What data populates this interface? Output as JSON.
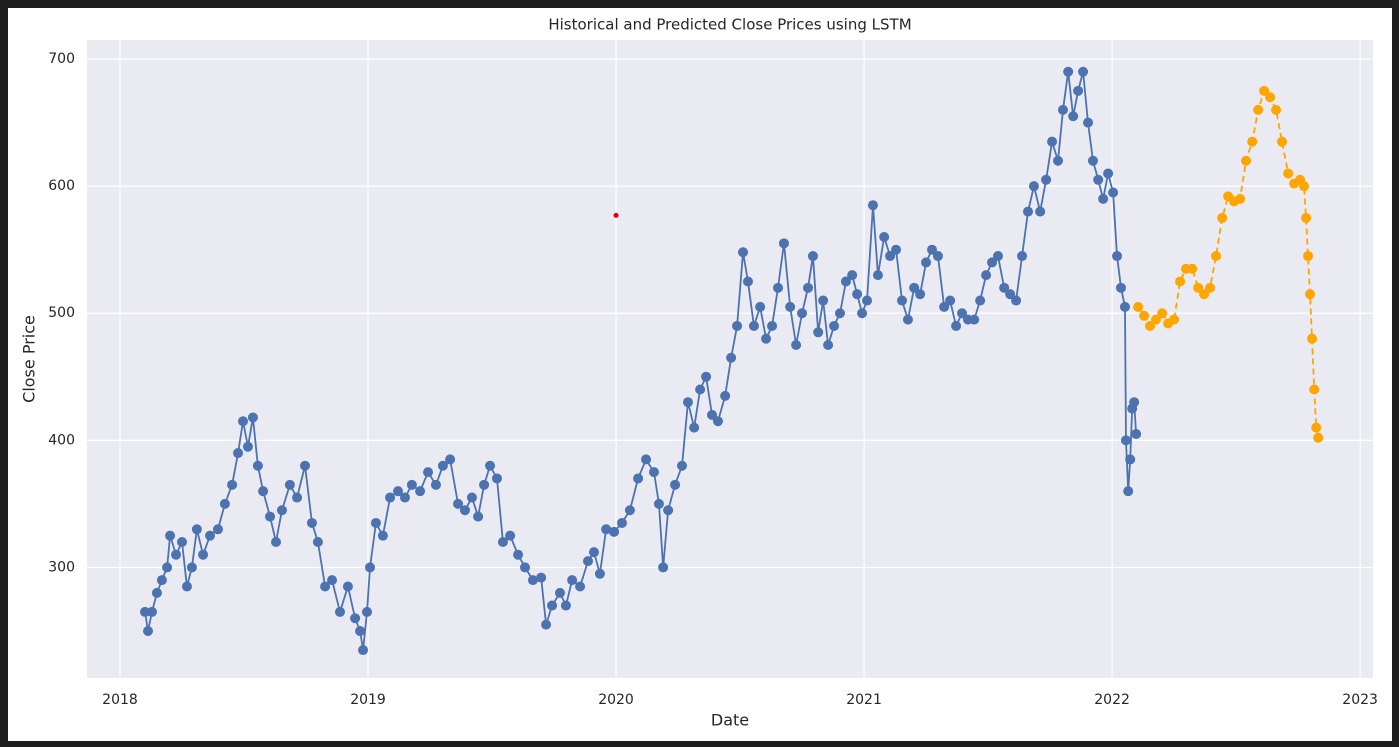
{
  "chart_data": {
    "type": "line",
    "title": "Historical and Predicted Close Prices using LSTM",
    "x_label": "Date",
    "y_label": "Close Price",
    "xlim": [
      2017.867,
      2023.052
    ],
    "ylim": [
      213,
      715
    ],
    "xticks": [
      2018,
      2019,
      2020,
      2021,
      2022,
      2023
    ],
    "yticks": [
      300,
      400,
      500,
      600,
      700
    ],
    "grid": true,
    "background": "#eaeaf2",
    "series": [
      {
        "color": "#4c72b0",
        "linestyle": "solid",
        "marker": "circle",
        "x": [
          2018.101,
          2018.113,
          2018.129,
          2018.149,
          2018.169,
          2018.19,
          2018.202,
          2018.226,
          2018.25,
          2018.27,
          2018.29,
          2018.31,
          2018.335,
          2018.363,
          2018.395,
          2018.423,
          2018.452,
          2018.476,
          2018.496,
          2018.516,
          2018.536,
          2018.556,
          2018.577,
          2018.605,
          2018.629,
          2018.653,
          2018.685,
          2018.714,
          2018.746,
          2018.774,
          2018.798,
          2018.827,
          2018.855,
          2018.887,
          2018.919,
          2018.948,
          2018.968,
          2018.98,
          2018.996,
          2019.008,
          2019.032,
          2019.06,
          2019.089,
          2019.121,
          2019.149,
          2019.177,
          2019.21,
          2019.242,
          2019.274,
          2019.302,
          2019.331,
          2019.363,
          2019.391,
          2019.419,
          2019.444,
          2019.468,
          2019.492,
          2019.52,
          2019.544,
          2019.573,
          2019.605,
          2019.633,
          2019.665,
          2019.698,
          2019.718,
          2019.742,
          2019.774,
          2019.798,
          2019.823,
          2019.855,
          2019.887,
          2019.911,
          2019.935,
          2019.96,
          2019.992,
          2020.024,
          2020.056,
          2020.089,
          2020.121,
          2020.153,
          2020.173,
          2020.19,
          2020.21,
          2020.238,
          2020.266,
          2020.29,
          2020.315,
          2020.339,
          2020.363,
          2020.387,
          2020.411,
          2020.44,
          2020.464,
          2020.488,
          2020.512,
          2020.532,
          2020.556,
          2020.581,
          2020.605,
          2020.629,
          2020.653,
          2020.677,
          2020.702,
          2020.726,
          2020.75,
          2020.774,
          2020.794,
          2020.815,
          2020.835,
          2020.855,
          2020.879,
          2020.903,
          2020.927,
          2020.952,
          2020.972,
          2020.992,
          2021.012,
          2021.036,
          2021.056,
          2021.081,
          2021.105,
          2021.129,
          2021.153,
          2021.177,
          2021.202,
          2021.226,
          2021.25,
          2021.274,
          2021.298,
          2021.323,
          2021.347,
          2021.371,
          2021.395,
          2021.419,
          2021.444,
          2021.468,
          2021.492,
          2021.516,
          2021.54,
          2021.565,
          2021.589,
          2021.613,
          2021.637,
          2021.661,
          2021.685,
          2021.71,
          2021.734,
          2021.758,
          2021.782,
          2021.802,
          2021.823,
          2021.843,
          2021.863,
          2021.883,
          2021.903,
          2021.923,
          2021.944,
          2021.964,
          2021.984,
          2022.004,
          2022.02,
          2022.036,
          2022.052,
          2022.056,
          2022.065,
          2022.073,
          2022.081,
          2022.089,
          2022.097
        ],
        "values": [
          265,
          250,
          265,
          280,
          290,
          300,
          325,
          310,
          320,
          285,
          300,
          330,
          310,
          325,
          330,
          350,
          365,
          390,
          415,
          395,
          418,
          380,
          360,
          340,
          320,
          345,
          365,
          355,
          380,
          335,
          320,
          285,
          290,
          265,
          285,
          260,
          250,
          235,
          265,
          300,
          335,
          325,
          355,
          360,
          355,
          365,
          360,
          375,
          365,
          380,
          385,
          350,
          345,
          355,
          340,
          365,
          380,
          370,
          320,
          325,
          310,
          300,
          290,
          292,
          255,
          270,
          280,
          270,
          290,
          285,
          305,
          312,
          295,
          330,
          328,
          335,
          345,
          370,
          385,
          375,
          350,
          300,
          345,
          365,
          380,
          430,
          410,
          440,
          450,
          420,
          415,
          435,
          465,
          490,
          548,
          525,
          490,
          505,
          480,
          490,
          520,
          555,
          505,
          475,
          500,
          520,
          545,
          485,
          510,
          475,
          490,
          500,
          525,
          530,
          515,
          500,
          510,
          585,
          530,
          560,
          545,
          550,
          510,
          495,
          520,
          515,
          540,
          550,
          545,
          505,
          510,
          490,
          500,
          495,
          495,
          510,
          530,
          540,
          545,
          520,
          515,
          510,
          545,
          580,
          600,
          580,
          605,
          635,
          620,
          660,
          690,
          655,
          675,
          690,
          650,
          620,
          605,
          590,
          610,
          595,
          545,
          520,
          505,
          400,
          360,
          385,
          425,
          430,
          405
        ]
      },
      {
        "color": "#ffa500",
        "linestyle": "dashed",
        "marker": "circle",
        "x": [
          2022.105,
          2022.129,
          2022.153,
          2022.177,
          2022.202,
          2022.226,
          2022.25,
          2022.274,
          2022.298,
          2022.323,
          2022.347,
          2022.371,
          2022.395,
          2022.419,
          2022.444,
          2022.468,
          2022.492,
          2022.516,
          2022.54,
          2022.565,
          2022.589,
          2022.613,
          2022.637,
          2022.661,
          2022.685,
          2022.71,
          2022.734,
          2022.758,
          2022.774,
          2022.782,
          2022.79,
          2022.798,
          2022.806,
          2022.815,
          2022.823,
          2022.831
        ],
        "values": [
          505,
          498,
          490,
          495,
          500,
          492,
          495,
          525,
          535,
          535,
          520,
          515,
          520,
          545,
          575,
          592,
          588,
          590,
          620,
          635,
          660,
          675,
          670,
          660,
          635,
          610,
          602,
          605,
          600,
          575,
          545,
          515,
          480,
          440,
          410,
          402
        ]
      },
      {
        "color": "#e00000",
        "linestyle": "none",
        "marker": "point",
        "x": [
          2020.0
        ],
        "values": [
          577
        ]
      }
    ]
  }
}
